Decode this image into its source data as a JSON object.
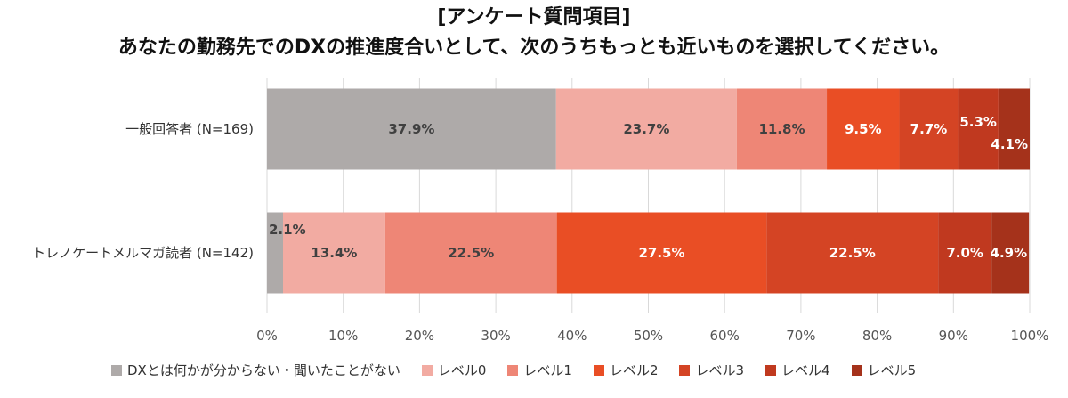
{
  "chart_data": {
    "type": "bar",
    "orientation": "horizontal-stacked",
    "title": "[アンケート質問項目]",
    "subtitle": "あなたの勤務先でのDXの推進度合いとして、次のうちもっとも近いものを選択してください。",
    "categories": [
      "一般回答者 (N=169)",
      "トレノケートメルマガ読者 (N=142)"
    ],
    "series": [
      {
        "name": "DXとは何かが分からない・聞いたことがない",
        "color": "#aeaaa9",
        "values": [
          37.9,
          2.1
        ]
      },
      {
        "name": "レベル0",
        "color": "#f2aba2",
        "values": [
          23.7,
          13.4
        ]
      },
      {
        "name": "レベル1",
        "color": "#ee8676",
        "values": [
          11.8,
          22.5
        ]
      },
      {
        "name": "レベル2",
        "color": "#e94e25",
        "values": [
          9.5,
          27.5
        ]
      },
      {
        "name": "レベル3",
        "color": "#d44424",
        "values": [
          7.7,
          22.5
        ]
      },
      {
        "name": "レベル4",
        "color": "#c0391f",
        "values": [
          5.3,
          7.0
        ]
      },
      {
        "name": "レベル5",
        "color": "#a5321b",
        "values": [
          4.1,
          4.9
        ]
      }
    ],
    "data_labels": [
      [
        "37.9%",
        "23.7%",
        "11.8%",
        "9.5%",
        "7.7%",
        "5.3%",
        "4.1%"
      ],
      [
        "2.1%",
        "13.4%",
        "22.5%",
        "27.5%",
        "22.5%",
        "7.0%",
        "4.9%"
      ]
    ],
    "xlim": [
      0,
      100
    ],
    "x_ticks": [
      "0%",
      "10%",
      "20%",
      "30%",
      "40%",
      "50%",
      "60%",
      "70%",
      "80%",
      "90%",
      "100%"
    ],
    "grid": true,
    "legend_position": "bottom"
  }
}
